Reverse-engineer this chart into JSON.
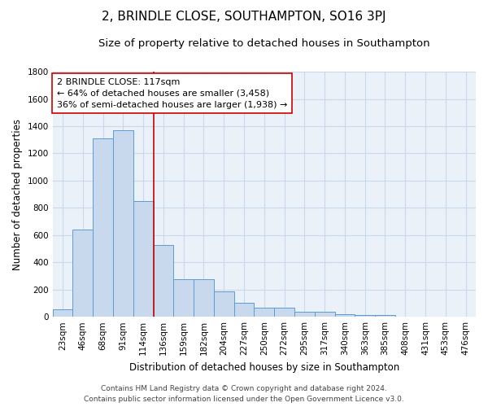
{
  "title": "2, BRINDLE CLOSE, SOUTHAMPTON, SO16 3PJ",
  "subtitle": "Size of property relative to detached houses in Southampton",
  "xlabel": "Distribution of detached houses by size in Southampton",
  "ylabel": "Number of detached properties",
  "bar_labels": [
    "23sqm",
    "46sqm",
    "68sqm",
    "91sqm",
    "114sqm",
    "136sqm",
    "159sqm",
    "182sqm",
    "204sqm",
    "227sqm",
    "250sqm",
    "272sqm",
    "295sqm",
    "317sqm",
    "340sqm",
    "363sqm",
    "385sqm",
    "408sqm",
    "431sqm",
    "453sqm",
    "476sqm"
  ],
  "bar_values": [
    55,
    640,
    1310,
    1370,
    850,
    525,
    275,
    275,
    185,
    105,
    65,
    65,
    35,
    35,
    20,
    12,
    12,
    0,
    0,
    0,
    0
  ],
  "bar_color": "#c8d9ed",
  "bar_edge_color": "#5b9bd5",
  "grid_color": "#c8d9ed",
  "background_color": "#eaf1f8",
  "vline_x": 4.5,
  "vline_color": "#cc0000",
  "annotation_title": "2 BRINDLE CLOSE: 117sqm",
  "annotation_line1": "← 64% of detached houses are smaller (3,458)",
  "annotation_line2": "36% of semi-detached houses are larger (1,938) →",
  "annotation_box_color": "#ffffff",
  "annotation_box_edge": "#cc0000",
  "ylim": [
    0,
    1800
  ],
  "yticks": [
    0,
    200,
    400,
    600,
    800,
    1000,
    1200,
    1400,
    1600,
    1800
  ],
  "footer_line1": "Contains HM Land Registry data © Crown copyright and database right 2024.",
  "footer_line2": "Contains public sector information licensed under the Open Government Licence v3.0.",
  "title_fontsize": 11,
  "subtitle_fontsize": 9.5,
  "axis_label_fontsize": 8.5,
  "tick_fontsize": 7.5,
  "annotation_fontsize": 8,
  "footer_fontsize": 6.5
}
